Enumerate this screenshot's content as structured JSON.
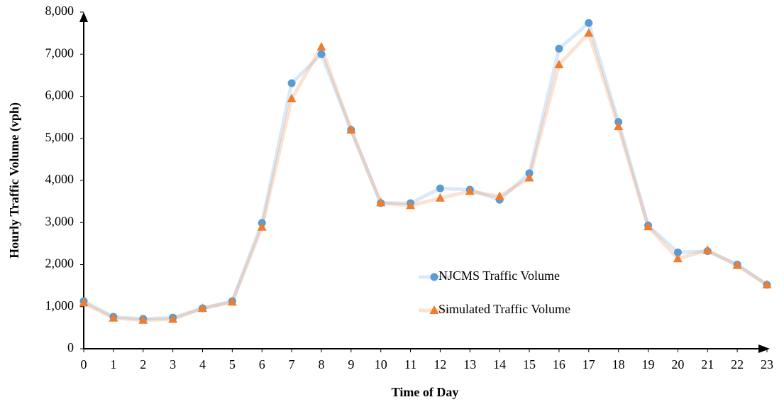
{
  "chart_data": {
    "type": "line",
    "x_label": "Time of Day",
    "y_label": "Hourly Traffic Volume (vph)",
    "x": [
      0,
      1,
      2,
      3,
      4,
      5,
      6,
      7,
      8,
      9,
      10,
      11,
      12,
      13,
      14,
      15,
      16,
      17,
      18,
      19,
      20,
      21,
      22,
      23
    ],
    "series": [
      {
        "name": "NJCMS Traffic Volume",
        "color": "#5b9bd5",
        "marker": "circle",
        "values": [
          1130,
          760,
          710,
          740,
          960,
          1130,
          2990,
          6310,
          7000,
          5200,
          3460,
          3460,
          3810,
          3780,
          3540,
          4170,
          7130,
          7740,
          5390,
          2930,
          2290,
          2320,
          2000,
          1520
        ]
      },
      {
        "name": "Simulated Traffic Volume",
        "color": "#ed7d31",
        "marker": "triangle",
        "values": [
          1090,
          730,
          680,
          700,
          960,
          1110,
          2890,
          5940,
          7170,
          5200,
          3470,
          3400,
          3580,
          3740,
          3620,
          4060,
          6750,
          7500,
          5280,
          2900,
          2140,
          2340,
          1980,
          1520
        ]
      }
    ],
    "xlim": [
      0,
      23
    ],
    "xticks": [
      0,
      1,
      2,
      3,
      4,
      5,
      6,
      7,
      8,
      9,
      10,
      11,
      12,
      13,
      14,
      15,
      16,
      17,
      18,
      19,
      20,
      21,
      22,
      23
    ],
    "ylim": [
      0,
      8000
    ],
    "yticks": [
      0,
      {
        "value": 1000,
        "label": "1,000"
      },
      {
        "value": 2000,
        "label": "2,000"
      },
      {
        "value": 3000,
        "label": "3,000"
      },
      {
        "value": 4000,
        "label": "4,000"
      },
      {
        "value": 5000,
        "label": "5,000"
      },
      {
        "value": 6000,
        "label": "6,000"
      },
      {
        "value": 7000,
        "label": "7,000"
      },
      {
        "value": 8000,
        "label": "8,000"
      }
    ],
    "grid": false,
    "legend": "right"
  }
}
